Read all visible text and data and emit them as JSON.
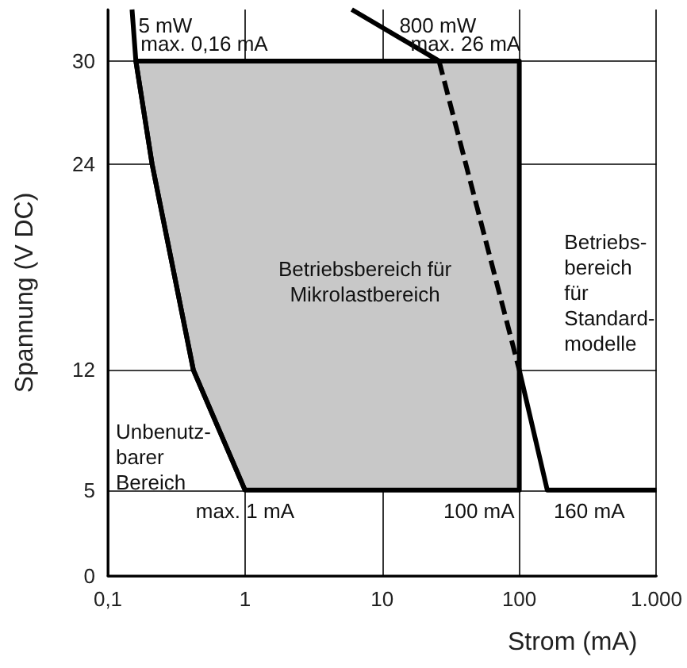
{
  "chart_data": {
    "type": "line",
    "xlabel": "Strom (mA)",
    "ylabel": "Spannung (V DC)",
    "log": "x",
    "xlim": [
      0.1,
      1000
    ],
    "xticks": [
      {
        "value": 0.1,
        "label": "0,1"
      },
      1,
      10,
      100,
      {
        "value": 1000,
        "label": "1.000"
      }
    ],
    "ylim": [
      0,
      33
    ],
    "yticks": [
      0,
      5,
      12,
      24,
      30
    ],
    "grid": true,
    "series": [
      {
        "color": "#000000",
        "x": [
          0.15,
          0.16,
          0.21,
          0.42,
          1
        ],
        "values": [
          33,
          30,
          24,
          12,
          5
        ]
      },
      {
        "color": "#000000",
        "x": [
          6,
          26
        ],
        "values": [
          33,
          30
        ]
      },
      {
        "color": "#000000",
        "x": [
          100,
          160,
          1000
        ],
        "values": [
          12,
          5,
          5
        ]
      },
      {
        "color": "#000000",
        "line_style": "dashed",
        "x": [
          26,
          51,
          100
        ],
        "values": [
          30,
          21,
          12
        ]
      },
      {
        "type": "area",
        "color": "#c8c8c8",
        "x": [
          0.16,
          100,
          100,
          1,
          0.42,
          0.21
        ],
        "values": [
          30,
          30,
          5,
          5,
          12,
          24
        ]
      }
    ],
    "annotations": [
      {
        "text": "5 mW",
        "x": 0.15,
        "y": 33
      },
      {
        "text": "800 mW",
        "x": 6,
        "y": 33
      },
      {
        "text": "max. 0,16 mA",
        "x": 0.16,
        "y": 30
      },
      {
        "text": "max. 26 mA",
        "x": 26,
        "y": 30
      },
      "Betriebsbereich für\nMikrolastbereich",
      "Betriebs-\nbereich\nfür\nStandard-\nmodelle",
      "Unbenutz-\nbarer\nBereich",
      {
        "text": "max. 1 mA",
        "x": 1,
        "y": 5
      },
      {
        "text": "100 mA",
        "x": 100,
        "y": 5
      },
      {
        "text": "160 mA",
        "x": 160,
        "y": 5
      }
    ]
  }
}
